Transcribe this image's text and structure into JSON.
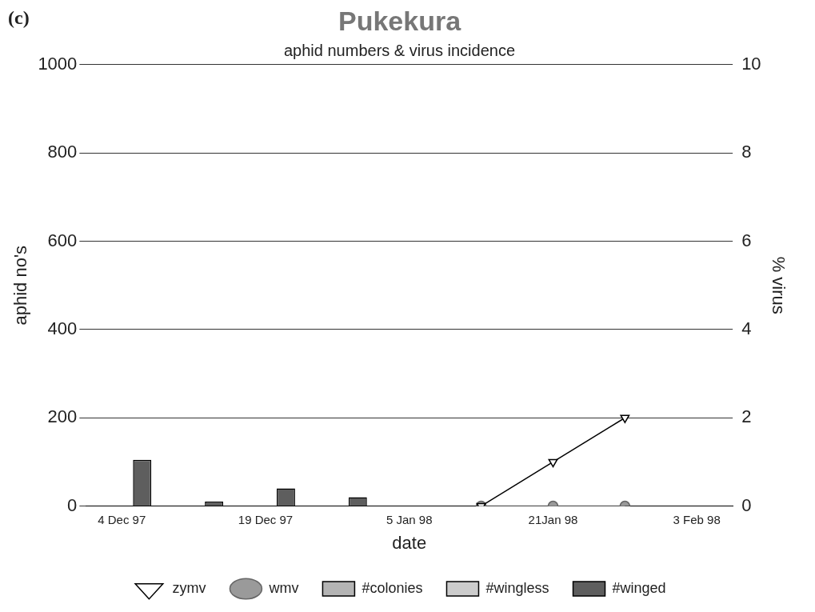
{
  "chart_data": {
    "type": "bar",
    "title": "Pukekura",
    "subtitle": "aphid numbers & virus incidence",
    "xlabel": "date",
    "ylabel": "aphid no's",
    "y2label": "% virus",
    "annotations": [
      "(c)"
    ],
    "categories": [
      "4 Dec 97",
      null,
      "19 Dec 97",
      null,
      "5 Jan 98",
      null,
      "21Jan 98",
      null,
      "3 Feb 98"
    ],
    "series": [
      {
        "name": "#colonies",
        "color": "#b4b4b4",
        "values": [
          0,
          0,
          0,
          0,
          0,
          0,
          0,
          0,
          0
        ]
      },
      {
        "name": "#wingless",
        "color": "#cccccc",
        "values": [
          0,
          0,
          0,
          0,
          0,
          0,
          0,
          0,
          0
        ]
      },
      {
        "name": "#winged",
        "color": "#5e5e5e",
        "values": [
          105,
          10,
          40,
          20,
          0,
          0,
          0,
          0,
          0
        ]
      },
      {
        "name": "zymv",
        "type": "line",
        "axis": "y2",
        "color": "#000000",
        "marker": "triangle",
        "values": [
          null,
          null,
          null,
          null,
          null,
          0,
          1,
          2,
          null
        ]
      },
      {
        "name": "wmv",
        "type": "line",
        "axis": "y2",
        "color": "#9a9a9a",
        "marker": "circle",
        "values": [
          null,
          null,
          null,
          null,
          null,
          0,
          0,
          0,
          null
        ]
      }
    ],
    "ylim": [
      0,
      1000
    ],
    "yticks": [
      0,
      200,
      400,
      600,
      800,
      1000
    ],
    "y2lim": [
      0,
      10
    ],
    "y2ticks": [
      0,
      2,
      4,
      6,
      8,
      10
    ],
    "grid": "y",
    "legend": "bottom"
  }
}
